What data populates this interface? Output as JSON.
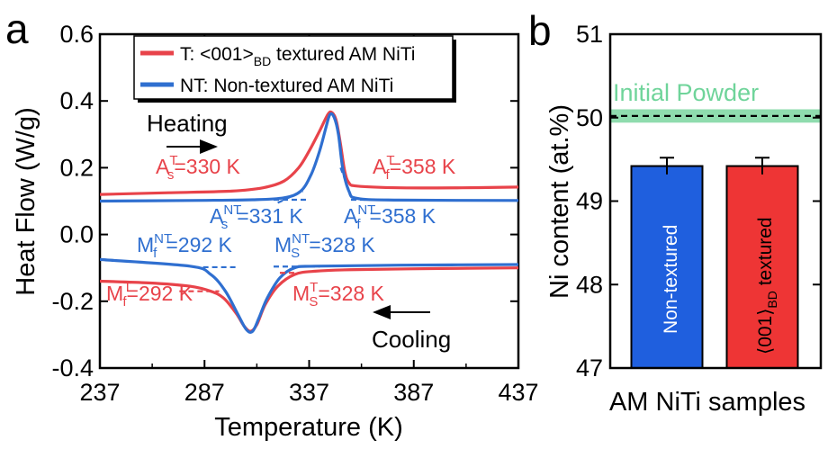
{
  "panel_a": {
    "letter": "a",
    "legend": [
      {
        "key": "T",
        "prefix": "T: <001>",
        "sub": "BD",
        "suffix": " textured AM NiTi"
      },
      {
        "key": "NT",
        "label": "NT: Non-textured AM NiTi"
      }
    ],
    "heating_label": "Heating",
    "cooling_label": "Cooling",
    "annotations": {
      "as_t": {
        "main": "A",
        "sub": "s",
        "sup": "T",
        "value": "=330 K"
      },
      "af_t": {
        "main": "A",
        "sub": "f",
        "sup": "T",
        "value": "=358 K"
      },
      "as_nt": {
        "main": "A",
        "sub": "s",
        "sup": "NT",
        "value": "=331 K"
      },
      "af_nt": {
        "main": "A",
        "sub": "f",
        "sup": "NT",
        "value": "=358 K"
      },
      "mf_nt": {
        "main": "M",
        "sub": "f",
        "sup": "NT",
        "value": "=292 K"
      },
      "ms_nt": {
        "main": "M",
        "sub": "S",
        "sup": "NT",
        "value": "=328 K"
      },
      "mf_t": {
        "main": "M",
        "sub": "f",
        "sup": "T",
        "value": "=292 K"
      },
      "ms_t": {
        "main": "M",
        "sub": "S",
        "sup": "T",
        "value": "=328 K"
      }
    }
  },
  "panel_b": {
    "letter": "b",
    "powder_label": "Initial Powder",
    "bar_labels": {
      "nt": "Non-textured",
      "t_pre": "⟨001⟩",
      "t_sub": "BD",
      "t_post": " textured"
    }
  },
  "colors": {
    "T": "#e8434a",
    "NT": "#2f6fd0",
    "powder_band": "#8fdcae",
    "bar_T": "#ee3535",
    "bar_NT": "#1f5fde"
  },
  "chart_data": [
    {
      "type": "line",
      "xlabel": "Temperature (K)",
      "ylabel": "Heat Flow (W/g)",
      "xlim": [
        237,
        437
      ],
      "ylim": [
        -0.4,
        0.6
      ],
      "xticks": [
        "237",
        "287",
        "337",
        "387",
        "437"
      ],
      "yticks": [
        "-0.4",
        "-0.2",
        "0.0",
        "0.2",
        "0.4",
        "0.6"
      ],
      "legend_position": "top-center",
      "series": [
        {
          "name": "T: <001>BD textured AM NiTi",
          "key": "T",
          "heating": [
            [
              237,
              0.12
            ],
            [
              270,
              0.125
            ],
            [
              300,
              0.13
            ],
            [
              315,
              0.14
            ],
            [
              325,
              0.16
            ],
            [
              332,
              0.2
            ],
            [
              337,
              0.25
            ],
            [
              342,
              0.31
            ],
            [
              346,
              0.36
            ],
            [
              348,
              0.365
            ],
            [
              350,
              0.34
            ],
            [
              352,
              0.27
            ],
            [
              354,
              0.19
            ],
            [
              356,
              0.155
            ],
            [
              360,
              0.145
            ],
            [
              380,
              0.14
            ],
            [
              410,
              0.14
            ],
            [
              437,
              0.142
            ]
          ],
          "cooling": [
            [
              437,
              -0.1
            ],
            [
              400,
              -0.102
            ],
            [
              360,
              -0.105
            ],
            [
              340,
              -0.11
            ],
            [
              330,
              -0.12
            ],
            [
              322,
              -0.155
            ],
            [
              316,
              -0.21
            ],
            [
              312,
              -0.27
            ],
            [
              309,
              -0.29
            ],
            [
              306,
              -0.275
            ],
            [
              302,
              -0.235
            ],
            [
              296,
              -0.19
            ],
            [
              290,
              -0.17
            ],
            [
              280,
              -0.155
            ],
            [
              260,
              -0.145
            ],
            [
              237,
              -0.14
            ]
          ]
        },
        {
          "name": "NT: Non-textured AM NiTi",
          "key": "NT",
          "heating": [
            [
              237,
              0.1
            ],
            [
              280,
              0.102
            ],
            [
              310,
              0.104
            ],
            [
              325,
              0.11
            ],
            [
              333,
              0.13
            ],
            [
              338,
              0.18
            ],
            [
              342,
              0.25
            ],
            [
              345,
              0.32
            ],
            [
              347,
              0.36
            ],
            [
              349,
              0.35
            ],
            [
              351,
              0.3
            ],
            [
              353,
              0.2
            ],
            [
              356,
              0.13
            ],
            [
              360,
              0.108
            ],
            [
              380,
              0.103
            ],
            [
              437,
              0.102
            ]
          ],
          "cooling": [
            [
              437,
              -0.09
            ],
            [
              380,
              -0.092
            ],
            [
              340,
              -0.095
            ],
            [
              330,
              -0.1
            ],
            [
              323,
              -0.13
            ],
            [
              317,
              -0.19
            ],
            [
              313,
              -0.25
            ],
            [
              310,
              -0.29
            ],
            [
              307,
              -0.285
            ],
            [
              303,
              -0.24
            ],
            [
              297,
              -0.17
            ],
            [
              290,
              -0.12
            ],
            [
              280,
              -0.095
            ],
            [
              237,
              -0.075
            ]
          ]
        }
      ]
    },
    {
      "type": "bar",
      "xlabel": "AM NiTi samples",
      "ylabel": "Ni content (at.%)",
      "ylim": [
        47,
        51
      ],
      "yticks": [
        "47",
        "48",
        "49",
        "50",
        "51"
      ],
      "categories": [
        "Non-textured",
        "⟨001⟩BD textured"
      ],
      "values": [
        49.42,
        49.42
      ],
      "errors": [
        0.1,
        0.1
      ],
      "reference": {
        "label": "Initial Powder",
        "value": 50.02,
        "band": [
          49.94,
          50.1
        ]
      }
    }
  ]
}
